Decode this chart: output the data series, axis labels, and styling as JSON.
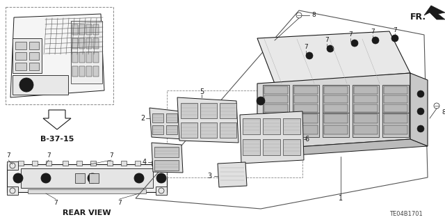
{
  "bg_color": "#ffffff",
  "line_color": "#1a1a1a",
  "diagram_id": "TE04B1701",
  "fr_label": "FR.",
  "ref_label": "B-37-15",
  "rear_view_label": "REAR VIEW",
  "figsize": [
    6.4,
    3.19
  ],
  "dpi": 100
}
